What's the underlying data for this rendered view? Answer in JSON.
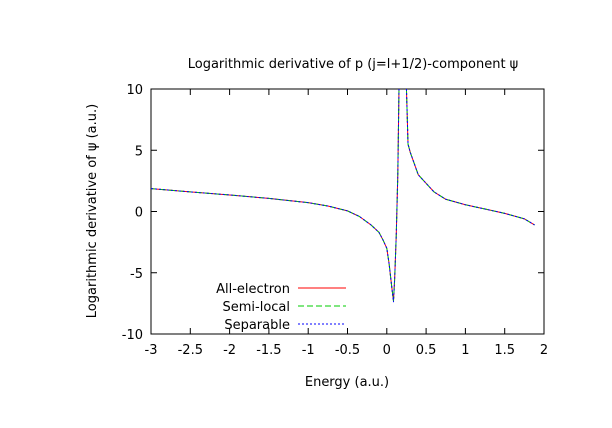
{
  "chart_data": {
    "type": "line",
    "title": "Logarithmic derivative of p (j=l+1/2)-component ψ",
    "xlabel": "Energy (a.u.)",
    "ylabel": "Logarithmic derivative of ψ (a.u.)",
    "xlim": [
      -3,
      2
    ],
    "ylim": [
      -10,
      10
    ],
    "xticks": [
      "-3",
      "-2.5",
      "-2",
      "-1.5",
      "-1",
      "-0.5",
      "0",
      "0.5",
      "1",
      "1.5",
      "2"
    ],
    "yticks": [
      "-10",
      "-5",
      "0",
      "5",
      "10"
    ],
    "grid": false,
    "legend_position": "bottom-left",
    "series": [
      {
        "name": "All-electron",
        "color": "#ff0000",
        "dash": "solid",
        "segments": [
          [
            [
              -3.0,
              1.87
            ],
            [
              -2.5,
              1.6
            ],
            [
              -2.0,
              1.35
            ],
            [
              -1.5,
              1.07
            ],
            [
              -1.0,
              0.72
            ],
            [
              -0.75,
              0.45
            ],
            [
              -0.5,
              0.05
            ],
            [
              -0.35,
              -0.4
            ],
            [
              -0.2,
              -1.1
            ],
            [
              -0.1,
              -1.7
            ],
            [
              -0.05,
              -2.3
            ],
            [
              0.0,
              -3.0
            ],
            [
              0.03,
              -4.3
            ],
            [
              0.06,
              -6.0
            ],
            [
              0.085,
              -7.3
            ],
            [
              0.1,
              -5.5
            ],
            [
              0.12,
              -2.0
            ],
            [
              0.14,
              3.0
            ],
            [
              0.155,
              10.0
            ]
          ],
          [
            [
              0.25,
              10.0
            ],
            [
              0.27,
              5.5
            ],
            [
              0.3,
              4.8
            ],
            [
              0.4,
              3.0
            ],
            [
              0.5,
              2.3
            ],
            [
              0.6,
              1.6
            ],
            [
              0.75,
              1.0
            ],
            [
              1.0,
              0.55
            ],
            [
              1.25,
              0.2
            ],
            [
              1.5,
              -0.15
            ],
            [
              1.75,
              -0.6
            ],
            [
              1.88,
              -1.1
            ]
          ]
        ]
      },
      {
        "name": "Semi-local",
        "color": "#00cc00",
        "dash": "6,3",
        "segments": [
          [
            [
              -3.0,
              1.87
            ],
            [
              -2.5,
              1.6
            ],
            [
              -2.0,
              1.35
            ],
            [
              -1.5,
              1.07
            ],
            [
              -1.0,
              0.72
            ],
            [
              -0.75,
              0.45
            ],
            [
              -0.5,
              0.05
            ],
            [
              -0.35,
              -0.4
            ],
            [
              -0.2,
              -1.1
            ],
            [
              -0.1,
              -1.7
            ],
            [
              -0.05,
              -2.3
            ],
            [
              0.0,
              -3.0
            ],
            [
              0.03,
              -4.3
            ],
            [
              0.06,
              -6.0
            ],
            [
              0.085,
              -7.3
            ],
            [
              0.1,
              -5.5
            ],
            [
              0.12,
              -2.0
            ],
            [
              0.14,
              3.0
            ],
            [
              0.155,
              10.0
            ]
          ],
          [
            [
              0.25,
              10.0
            ],
            [
              0.27,
              5.5
            ],
            [
              0.3,
              4.8
            ],
            [
              0.4,
              3.0
            ],
            [
              0.5,
              2.3
            ],
            [
              0.6,
              1.6
            ],
            [
              0.75,
              1.0
            ],
            [
              1.0,
              0.55
            ],
            [
              1.25,
              0.2
            ],
            [
              1.5,
              -0.15
            ],
            [
              1.75,
              -0.6
            ],
            [
              1.88,
              -1.1
            ]
          ]
        ]
      },
      {
        "name": "Separable",
        "color": "#0000ff",
        "dash": "2,2",
        "segments": [
          [
            [
              -3.0,
              1.87
            ],
            [
              -2.5,
              1.6
            ],
            [
              -2.0,
              1.35
            ],
            [
              -1.5,
              1.07
            ],
            [
              -1.0,
              0.72
            ],
            [
              -0.75,
              0.45
            ],
            [
              -0.5,
              0.05
            ],
            [
              -0.35,
              -0.4
            ],
            [
              -0.2,
              -1.1
            ],
            [
              -0.1,
              -1.7
            ],
            [
              -0.05,
              -2.3
            ],
            [
              0.0,
              -3.0
            ],
            [
              0.03,
              -4.3
            ],
            [
              0.06,
              -6.0
            ],
            [
              0.085,
              -7.4
            ],
            [
              0.1,
              -5.5
            ],
            [
              0.12,
              -2.0
            ],
            [
              0.14,
              3.0
            ],
            [
              0.155,
              10.0
            ]
          ],
          [
            [
              0.25,
              10.0
            ],
            [
              0.27,
              5.5
            ],
            [
              0.3,
              4.8
            ],
            [
              0.4,
              3.0
            ],
            [
              0.5,
              2.3
            ],
            [
              0.6,
              1.6
            ],
            [
              0.75,
              1.0
            ],
            [
              1.0,
              0.55
            ],
            [
              1.25,
              0.2
            ],
            [
              1.5,
              -0.15
            ],
            [
              1.75,
              -0.6
            ],
            [
              1.88,
              -1.1
            ]
          ]
        ]
      }
    ]
  }
}
